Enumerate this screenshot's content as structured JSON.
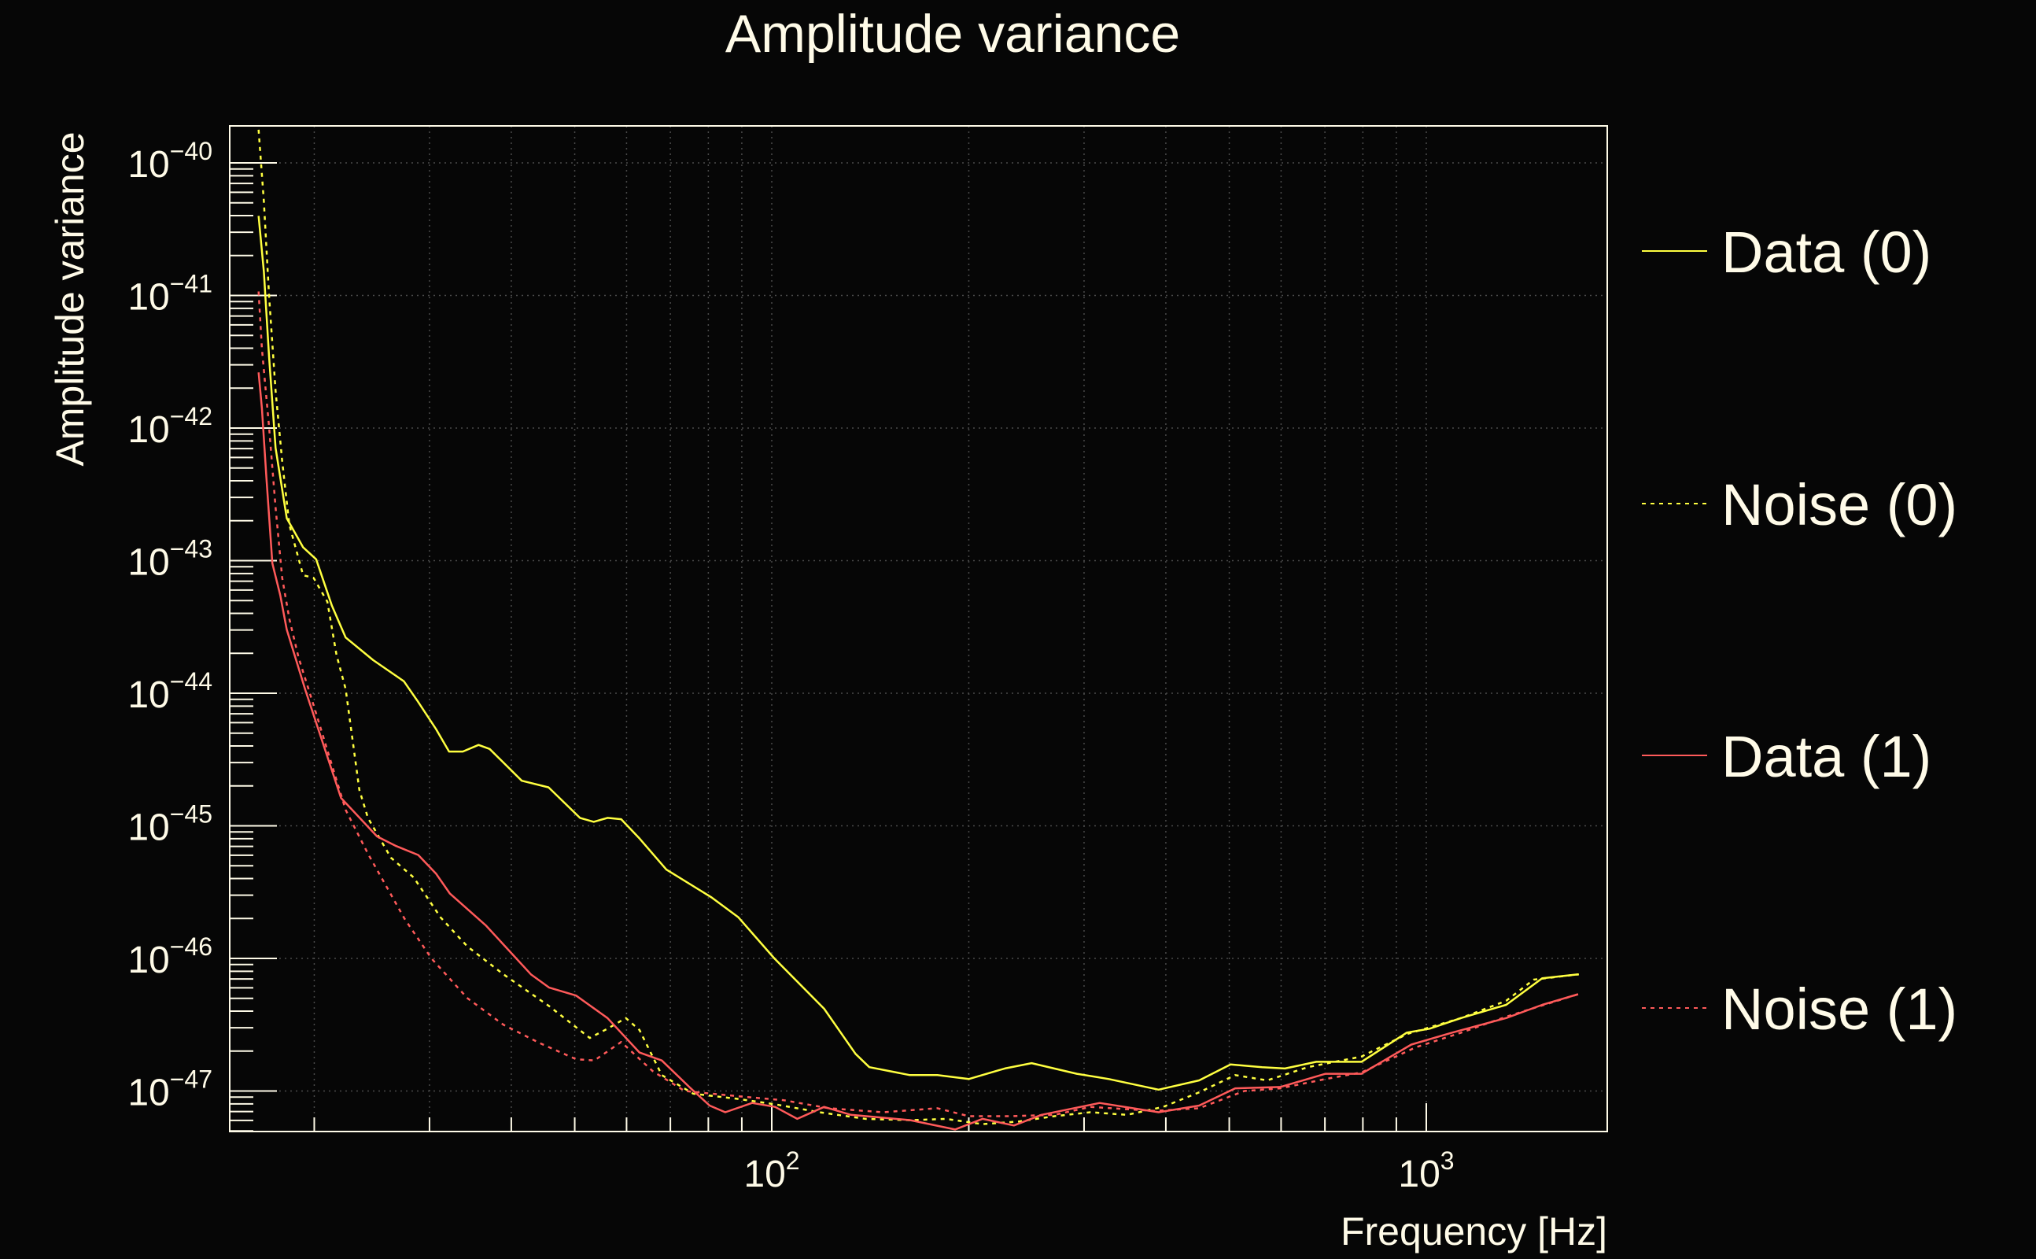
{
  "chart_data": {
    "type": "line",
    "title": "Amplitude variance",
    "xlabel": "Frequency [Hz]",
    "ylabel": "Amplitude variance",
    "xscale": "log",
    "yscale": "log",
    "xlim_log10": [
      1.172,
      3.276
    ],
    "ylim_log10": [
      -47.31,
      -39.72
    ],
    "grid": true,
    "legend_placement": "right-outside",
    "x_ticks": [
      {
        "base": "10",
        "exp": "2",
        "log10": 2
      },
      {
        "base": "10",
        "exp": "3",
        "log10": 3
      }
    ],
    "y_ticks": [
      {
        "base": "10",
        "exp": "−40",
        "log10": -40
      },
      {
        "base": "10",
        "exp": "−41",
        "log10": -41
      },
      {
        "base": "10",
        "exp": "−42",
        "log10": -42
      },
      {
        "base": "10",
        "exp": "−43",
        "log10": -43
      },
      {
        "base": "10",
        "exp": "−44",
        "log10": -44
      },
      {
        "base": "10",
        "exp": "−45",
        "log10": -45
      },
      {
        "base": "10",
        "exp": "−46",
        "log10": -46
      },
      {
        "base": "10",
        "exp": "−47",
        "log10": -47
      }
    ],
    "series": [
      {
        "name": "Data (0)",
        "color": "#ffff40",
        "dash": "solid",
        "log10_x": [
          1.216,
          1.224,
          1.232,
          1.242,
          1.259,
          1.284,
          1.304,
          1.328,
          1.349,
          1.391,
          1.438,
          1.459,
          1.487,
          1.507,
          1.528,
          1.552,
          1.569,
          1.618,
          1.659,
          1.707,
          1.728,
          1.749,
          1.77,
          1.797,
          1.839,
          1.908,
          1.949,
          2.004,
          2.08,
          2.128,
          2.149,
          2.211,
          2.253,
          2.301,
          2.356,
          2.397,
          2.466,
          2.515,
          2.591,
          2.653,
          2.701,
          2.749,
          2.784,
          2.832,
          2.901,
          2.97,
          3.005,
          3.053,
          3.122,
          3.177,
          3.232
        ],
        "log10_y": [
          -40.4,
          -40.82,
          -41.46,
          -42.15,
          -42.68,
          -42.9,
          -42.99,
          -43.34,
          -43.58,
          -43.75,
          -43.91,
          -44.06,
          -44.27,
          -44.44,
          -44.44,
          -44.39,
          -44.42,
          -44.66,
          -44.71,
          -44.94,
          -44.97,
          -44.94,
          -44.95,
          -45.09,
          -45.33,
          -45.54,
          -45.69,
          -46.0,
          -46.38,
          -46.72,
          -46.82,
          -46.88,
          -46.88,
          -46.91,
          -46.83,
          -46.79,
          -46.87,
          -46.91,
          -46.99,
          -46.92,
          -46.8,
          -46.82,
          -46.83,
          -46.78,
          -46.78,
          -46.56,
          -46.53,
          -46.45,
          -46.35,
          -46.15,
          -46.12
        ]
      },
      {
        "name": "Noise (0)",
        "color": "#ffff40",
        "dash": "dotted",
        "log10_x": [
          1.216,
          1.224,
          1.232,
          1.242,
          1.252,
          1.263,
          1.284,
          1.3,
          1.321,
          1.335,
          1.349,
          1.37,
          1.383,
          1.418,
          1.453,
          1.494,
          1.535,
          1.59,
          1.66,
          1.722,
          1.749,
          1.777,
          1.798,
          1.832,
          1.88,
          1.949,
          2.005,
          2.073,
          2.143,
          2.212,
          2.266,
          2.322,
          2.377,
          2.432,
          2.487,
          2.543,
          2.598,
          2.653,
          2.708,
          2.757,
          2.819,
          2.901,
          2.971,
          3.053,
          3.122,
          3.164,
          3.233
        ],
        "log10_y": [
          -39.75,
          -40.29,
          -41.0,
          -41.72,
          -42.25,
          -42.73,
          -43.11,
          -43.13,
          -43.31,
          -43.71,
          -43.97,
          -44.73,
          -44.94,
          -45.24,
          -45.39,
          -45.69,
          -45.91,
          -46.12,
          -46.36,
          -46.6,
          -46.53,
          -46.45,
          -46.54,
          -46.88,
          -47.02,
          -47.06,
          -47.1,
          -47.16,
          -47.21,
          -47.22,
          -47.21,
          -47.25,
          -47.23,
          -47.19,
          -47.16,
          -47.18,
          -47.12,
          -47.01,
          -46.88,
          -46.92,
          -46.82,
          -46.74,
          -46.57,
          -46.45,
          -46.32,
          -46.16,
          -46.12
        ]
      },
      {
        "name": "Data (1)",
        "color": "#ff5a5a",
        "dash": "solid",
        "log10_x": [
          1.216,
          1.221,
          1.228,
          1.237,
          1.249,
          1.259,
          1.287,
          1.342,
          1.397,
          1.425,
          1.46,
          1.487,
          1.508,
          1.563,
          1.632,
          1.66,
          1.701,
          1.749,
          1.798,
          1.832,
          1.874,
          1.905,
          1.929,
          1.97,
          2.005,
          2.039,
          2.08,
          2.121,
          2.212,
          2.28,
          2.322,
          2.37,
          2.412,
          2.501,
          2.591,
          2.653,
          2.708,
          2.777,
          2.846,
          2.901,
          2.977,
          3.039,
          3.122,
          3.177,
          3.232
        ],
        "log10_y": [
          -41.58,
          -41.85,
          -42.38,
          -43.02,
          -43.26,
          -43.52,
          -43.97,
          -44.79,
          -45.08,
          -45.15,
          -45.22,
          -45.36,
          -45.51,
          -45.75,
          -46.12,
          -46.22,
          -46.28,
          -46.45,
          -46.71,
          -46.77,
          -46.97,
          -47.11,
          -47.16,
          -47.09,
          -47.12,
          -47.21,
          -47.12,
          -47.18,
          -47.22,
          -47.29,
          -47.21,
          -47.26,
          -47.18,
          -47.09,
          -47.16,
          -47.11,
          -46.98,
          -46.97,
          -46.87,
          -46.87,
          -46.65,
          -46.56,
          -46.45,
          -46.35,
          -46.27
        ]
      },
      {
        "name": "Noise (1)",
        "color": "#ff5a5a",
        "dash": "dotted",
        "log10_x": [
          1.216,
          1.221,
          1.232,
          1.242,
          1.252,
          1.263,
          1.277,
          1.3,
          1.349,
          1.383,
          1.439,
          1.48,
          1.535,
          1.59,
          1.646,
          1.701,
          1.729,
          1.77,
          1.818,
          1.867,
          1.949,
          2.019,
          2.087,
          2.17,
          2.253,
          2.301,
          2.363,
          2.432,
          2.487,
          2.584,
          2.653,
          2.722,
          2.777,
          2.846,
          2.901,
          2.984,
          3.053,
          3.122,
          3.232
        ],
        "log10_y": [
          -40.97,
          -41.4,
          -41.99,
          -42.6,
          -43.13,
          -43.44,
          -43.73,
          -44.09,
          -44.88,
          -45.21,
          -45.7,
          -46.0,
          -46.3,
          -46.5,
          -46.64,
          -46.76,
          -46.77,
          -46.63,
          -46.85,
          -47.0,
          -47.04,
          -47.07,
          -47.13,
          -47.16,
          -47.13,
          -47.19,
          -47.19,
          -47.18,
          -47.12,
          -47.15,
          -47.13,
          -47.0,
          -46.98,
          -46.91,
          -46.86,
          -46.67,
          -46.56,
          -46.44,
          -46.27
        ]
      }
    ]
  }
}
